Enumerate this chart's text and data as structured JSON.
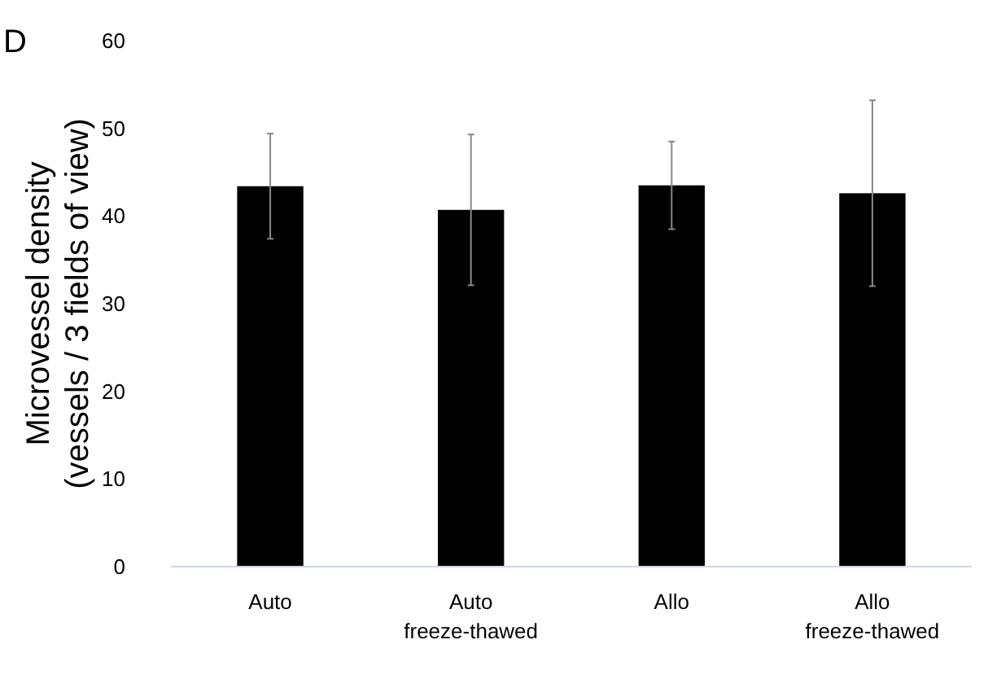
{
  "chart_data": {
    "type": "bar",
    "categories": [
      "Auto",
      "Auto\nfreeze-thawed",
      "Allo",
      "Allo\nfreeze-thawed"
    ],
    "values": [
      43.4,
      40.7,
      43.5,
      42.6
    ],
    "errors": [
      6,
      8.6,
      5,
      10.6
    ],
    "color": "#000000",
    "ylabel": "Microvessel density\n(vessels / 3 fields of view)",
    "annotations": [
      "D"
    ],
    "ylim": [
      0,
      60
    ],
    "yticks": [
      0,
      10,
      20,
      30,
      40,
      50,
      60
    ],
    "grid": false
  }
}
